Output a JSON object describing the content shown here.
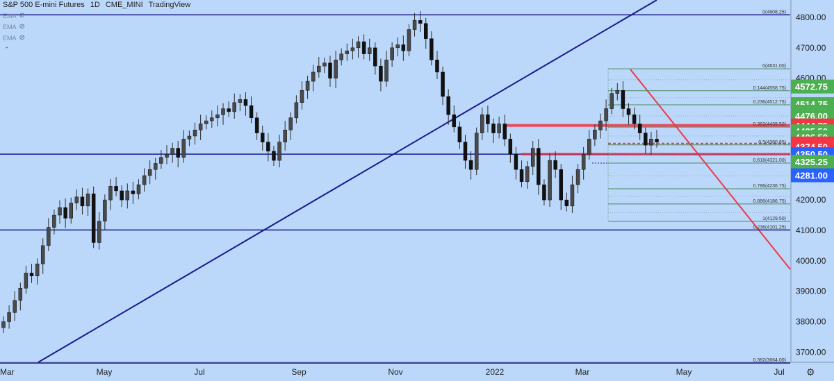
{
  "header": {
    "title": "S&P 500 E-mini Futures",
    "interval": "1D",
    "exchange": "CME_MINI",
    "source": "TradingView"
  },
  "indicators": [
    {
      "label": "EMA",
      "icon": "eye-slash-icon"
    },
    {
      "label": "EMA",
      "icon": "eye-slash-icon"
    },
    {
      "label": "EMA",
      "icon": "eye-slash-icon"
    }
  ],
  "icons": {
    "collapse": "chevron-up-icon",
    "settings": "gear-icon"
  },
  "chart_data": {
    "type": "candlestick",
    "title": "S&P 500 E-mini Futures",
    "x_labels": [
      "Mar",
      "May",
      "Jul",
      "Sep",
      "Nov",
      "2022",
      "Mar",
      "May",
      "Jul"
    ],
    "y_ticks": [
      4800,
      4700,
      4600,
      4500,
      4400,
      4300,
      4200,
      4100,
      4000,
      3900,
      3800,
      3700
    ],
    "ylim": [
      3640,
      4850
    ],
    "grid": false,
    "price_tags": [
      {
        "value": 4572.75,
        "label": "4572.75",
        "color": "#4caf50"
      },
      {
        "value": 4514.75,
        "label": "4514.75",
        "color": "#4caf50"
      },
      {
        "value": 4489.75,
        "label": "4489.75",
        "color": "#4caf50"
      },
      {
        "value": 4476.0,
        "label": "4476.00",
        "color": "#4caf50"
      },
      {
        "value": 4444.75,
        "label": "4444.75",
        "color": "#f23645"
      },
      {
        "value": 4425.5,
        "label": "4425.50",
        "color": "#4caf50"
      },
      {
        "value": 4406.5,
        "label": "4406.50",
        "color": "#4caf50"
      },
      {
        "value": 4385.5,
        "label": "4385.50",
        "color": "#f23645"
      },
      {
        "value": 4374.5,
        "label": "4374.50",
        "color": "#f23645"
      },
      {
        "value": 4350.5,
        "label": "4350.50",
        "color": "#2962ff"
      },
      {
        "value": 4325.25,
        "label": "4325.25",
        "color": "#4caf50"
      },
      {
        "value": 4281.0,
        "label": "4281.00",
        "color": "#2962ff"
      }
    ],
    "horizontal_levels": [
      {
        "value": 4808.25,
        "color": "#1a1a8c"
      },
      {
        "value": 4350.5,
        "color": "#1a1a8c"
      },
      {
        "value": 4101.25,
        "color": "#1a1a8c"
      },
      {
        "value": 3664.0,
        "color": "#1a1a8c"
      }
    ],
    "resistance_zones": [
      {
        "value": 4444.75,
        "color": "#f23645"
      },
      {
        "value": 4350.5,
        "color": "#f23645"
      }
    ],
    "dashed_levels": [
      {
        "value": 4385.5,
        "color": "#f23645"
      }
    ],
    "long_term_fib": [
      {
        "label": "0(4808.25)",
        "value": 4808.25
      },
      {
        "label": "0.236(4101.25)",
        "value": 4101.25
      },
      {
        "label": "0.382(3664.00)",
        "value": 3664.0
      }
    ],
    "short_term_fib": [
      {
        "label": "0(4631.00)",
        "value": 4631.0
      },
      {
        "label": "0.144(4558.75)",
        "value": 4558.75
      },
      {
        "label": "0.236(4512.75)",
        "value": 4512.75
      },
      {
        "label": "0.382(4439.50)",
        "value": 4439.5
      },
      {
        "label": "0.5(4380.85)",
        "value": 4380.85
      },
      {
        "label": "0.618(4321.00)",
        "value": 4321.0
      },
      {
        "label": "0.786(4236.75)",
        "value": 4236.75
      },
      {
        "label": "0.886(4186.75)",
        "value": 4186.75
      },
      {
        "label": "1(4129.50)",
        "value": 4129.5
      }
    ],
    "ohlc_closes_approx": [
      3800,
      3830,
      3870,
      3910,
      3960,
      3950,
      3990,
      4050,
      4110,
      4150,
      4175,
      4140,
      4190,
      4210,
      4180,
      4220,
      4060,
      4130,
      4200,
      4245,
      4230,
      4200,
      4230,
      4220,
      4250,
      4280,
      4300,
      4320,
      4340,
      4350,
      4370,
      4340,
      4400,
      4410,
      4430,
      4450,
      4460,
      4470,
      4480,
      4500,
      4490,
      4520,
      4530,
      4510,
      4470,
      4420,
      4390,
      4360,
      4330,
      4390,
      4430,
      4470,
      4520,
      4560,
      4590,
      4620,
      4640,
      4650,
      4600,
      4660,
      4680,
      4690,
      4700,
      4720,
      4680,
      4700,
      4640,
      4590,
      4660,
      4700,
      4710,
      4690,
      4760,
      4790,
      4780,
      4730,
      4660,
      4620,
      4540,
      4480,
      4440,
      4390,
      4330,
      4300,
      4420,
      4480,
      4450,
      4420,
      4450,
      4400,
      4350,
      4300,
      4260,
      4310,
      4370,
      4250,
      4200,
      4330,
      4300,
      4200,
      4180,
      4250,
      4300,
      4350,
      4400,
      4430,
      4460,
      4500,
      4550,
      4560,
      4500,
      4480,
      4450,
      4420,
      4380,
      4400,
      4390
    ]
  }
}
